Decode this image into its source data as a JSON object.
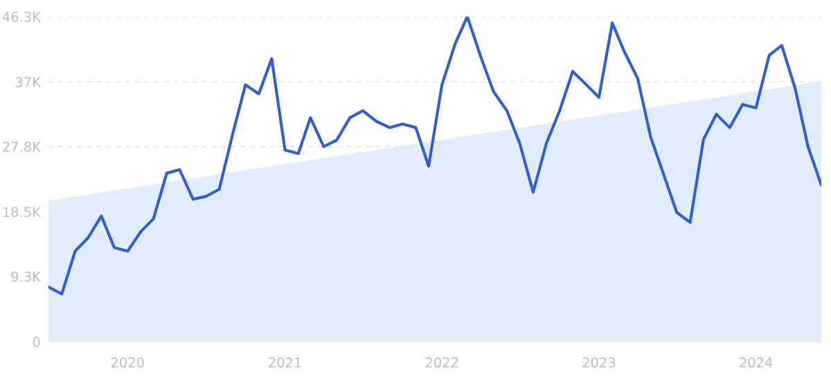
{
  "chart_data": {
    "type": "line",
    "series": [
      {
        "type": "area",
        "color": "#e2edfb",
        "x": [
          "2019-07",
          "2024-06"
        ],
        "values": [
          20100,
          37100
        ]
      },
      {
        "color": "#2f5fd3",
        "x": [
          "2019-07",
          "2019-08",
          "2019-09",
          "2019-10",
          "2019-11",
          "2019-12",
          "2020-01",
          "2020-02",
          "2020-03",
          "2020-04",
          "2020-05",
          "2020-06",
          "2020-07",
          "2020-08",
          "2020-09",
          "2020-10",
          "2020-11",
          "2020-12",
          "2021-01",
          "2021-02",
          "2021-03",
          "2021-04",
          "2021-05",
          "2021-06",
          "2021-07",
          "2021-08",
          "2021-09",
          "2021-10",
          "2021-11",
          "2021-12",
          "2022-01",
          "2022-02",
          "2022-03",
          "2022-04",
          "2022-05",
          "2022-06",
          "2022-07",
          "2022-08",
          "2022-09",
          "2022-10",
          "2022-11",
          "2022-12",
          "2023-01",
          "2023-02",
          "2023-03",
          "2023-04",
          "2023-05",
          "2023-06",
          "2023-07",
          "2023-08",
          "2023-09",
          "2023-10",
          "2023-11",
          "2023-12",
          "2024-01",
          "2024-02",
          "2024-03",
          "2024-04",
          "2024-05",
          "2024-06"
        ],
        "values": [
          7800,
          6800,
          12900,
          14800,
          17900,
          13400,
          12900,
          15700,
          17500,
          24000,
          24500,
          20300,
          20700,
          21700,
          29500,
          36600,
          35300,
          40300,
          27300,
          26800,
          31900,
          27800,
          28700,
          31900,
          32900,
          31400,
          30500,
          31000,
          30500,
          25000,
          36600,
          42500,
          46300,
          40600,
          35600,
          32900,
          28200,
          21300,
          28300,
          32800,
          38500,
          36700,
          34800,
          45400,
          41300,
          37500,
          29200,
          23700,
          18400,
          17000,
          28800,
          32400,
          30500,
          33800,
          33300,
          40800,
          42200,
          36100,
          27800,
          22300
        ]
      }
    ],
    "xlim": [
      "2019-07",
      "2024-06"
    ],
    "xticks": [
      {
        "value": "2020-01",
        "label": "2020"
      },
      {
        "value": "2021-01",
        "label": "2021"
      },
      {
        "value": "2022-01",
        "label": "2022"
      },
      {
        "value": "2023-01",
        "label": "2023"
      },
      {
        "value": "2024-01",
        "label": "2024"
      }
    ],
    "ylim": [
      0,
      46300
    ],
    "yticks": [
      0,
      {
        "value": 9300,
        "label": "9.3K"
      },
      {
        "value": 18500,
        "label": "18.5K"
      },
      {
        "value": 27800,
        "label": "27.8K"
      },
      {
        "value": 37000,
        "label": "37K"
      },
      {
        "value": 46300,
        "label": "46.3K"
      }
    ],
    "grid": "y",
    "marker": "none",
    "line_style": "solid",
    "legend": false
  }
}
